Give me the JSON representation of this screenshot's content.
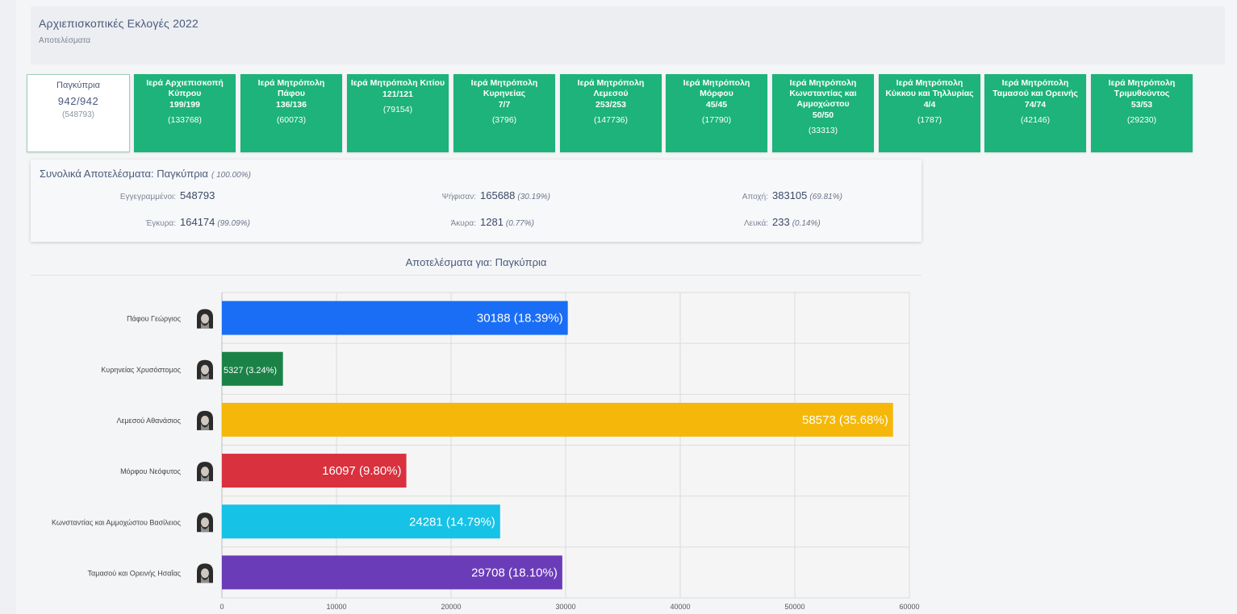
{
  "header": {
    "title": "Αρχιεπισκοπικές Εκλογές 2022",
    "subtitle": "Αποτελέσματα"
  },
  "tiles": [
    {
      "name": "Παγκύπρια",
      "count": "942/942",
      "registered": "(548793)",
      "active": true
    },
    {
      "name": "Ιερά Αρχιεπισκοπή Κύπρου",
      "count": "199/199",
      "registered": "(133768)"
    },
    {
      "name": "Ιερά Μητρόπολη Πάφου",
      "count": "136/136",
      "registered": "(60073)"
    },
    {
      "name": "Ιερά Μητρόπολη Κιτίου",
      "count": "121/121",
      "registered": "(79154)"
    },
    {
      "name": "Ιερά Μητρόπολη Κυρηνείας",
      "count": "7/7",
      "registered": "(3796)"
    },
    {
      "name": "Ιερά Μητρόπολη Λεμεσού",
      "count": "253/253",
      "registered": "(147736)"
    },
    {
      "name": "Ιερά Μητρόπολη Μόρφου",
      "count": "45/45",
      "registered": "(17790)"
    },
    {
      "name": "Ιερά Μητρόπολη Κωνσταντίας και Αμμοχώστου",
      "count": "50/50",
      "registered": "(33313)"
    },
    {
      "name": "Ιερά Μητρόπολη Κύκκου και Τηλλυρίας",
      "count": "4/4",
      "registered": "(1787)"
    },
    {
      "name": "Ιερά Μητρόπολη Ταμασού και Ορεινής",
      "count": "74/74",
      "registered": "(42146)"
    },
    {
      "name": "Ιερά Μητρόπολη Τριμυθούντος",
      "count": "53/53",
      "registered": "(29230)"
    }
  ],
  "summary": {
    "title": "Συνολικά Αποτελέσματα: Παγκύπρια",
    "title_pct": "( 100.00%)",
    "registered": {
      "label": "Εγγεγραμμένοι:",
      "value": "548793",
      "pct": ""
    },
    "voted": {
      "label": "Ψήφισαν:",
      "value": "165688",
      "pct": "(30.19%)"
    },
    "abstention": {
      "label": "Αποχή:",
      "value": "383105",
      "pct": "(69.81%)"
    },
    "valid": {
      "label": "Έγκυρα:",
      "value": "164174",
      "pct": "(99.09%)"
    },
    "invalid": {
      "label": "Άκυρα:",
      "value": "1281",
      "pct": "(0.77%)"
    },
    "blank": {
      "label": "Λευκά:",
      "value": "233",
      "pct": "(0.14%)"
    }
  },
  "chart_heading": "Αποτελέσματα για: Παγκύπρια",
  "chart_data": {
    "type": "bar",
    "orientation": "horizontal",
    "categories": [
      "Πάφου Γεώργιος",
      "Κυρηνείας Χρυσόστομος",
      "Λεμεσού Αθανάσιος",
      "Μόρφου Νεόφυτος",
      "Κωνσταντίας και Αμμοχώστου Βασίλειος",
      "Ταμασού και Ορεινής Ησαΐας"
    ],
    "values": [
      30188,
      5327,
      58573,
      16097,
      24281,
      29708
    ],
    "labels": [
      "30188 (18.39%)",
      "5327 (3.24%)",
      "58573 (35.68%)",
      "16097 (9.80%)",
      "24281 (14.79%)",
      "29708 (18.10%)"
    ],
    "colors": [
      "#1a6ef5",
      "#1a8246",
      "#f5b80a",
      "#d9313e",
      "#16c2e6",
      "#6b3cb8"
    ],
    "xlim": [
      0,
      60000
    ],
    "xticks": [
      "0",
      "10000",
      "20000",
      "30000",
      "40000",
      "50000",
      "60000"
    ],
    "grid": true,
    "icons": [
      "bishop-portrait-icon",
      "bishop-portrait-icon",
      "bishop-portrait-icon",
      "bishop-portrait-icon",
      "bishop-portrait-icon",
      "bishop-portrait-icon"
    ]
  }
}
